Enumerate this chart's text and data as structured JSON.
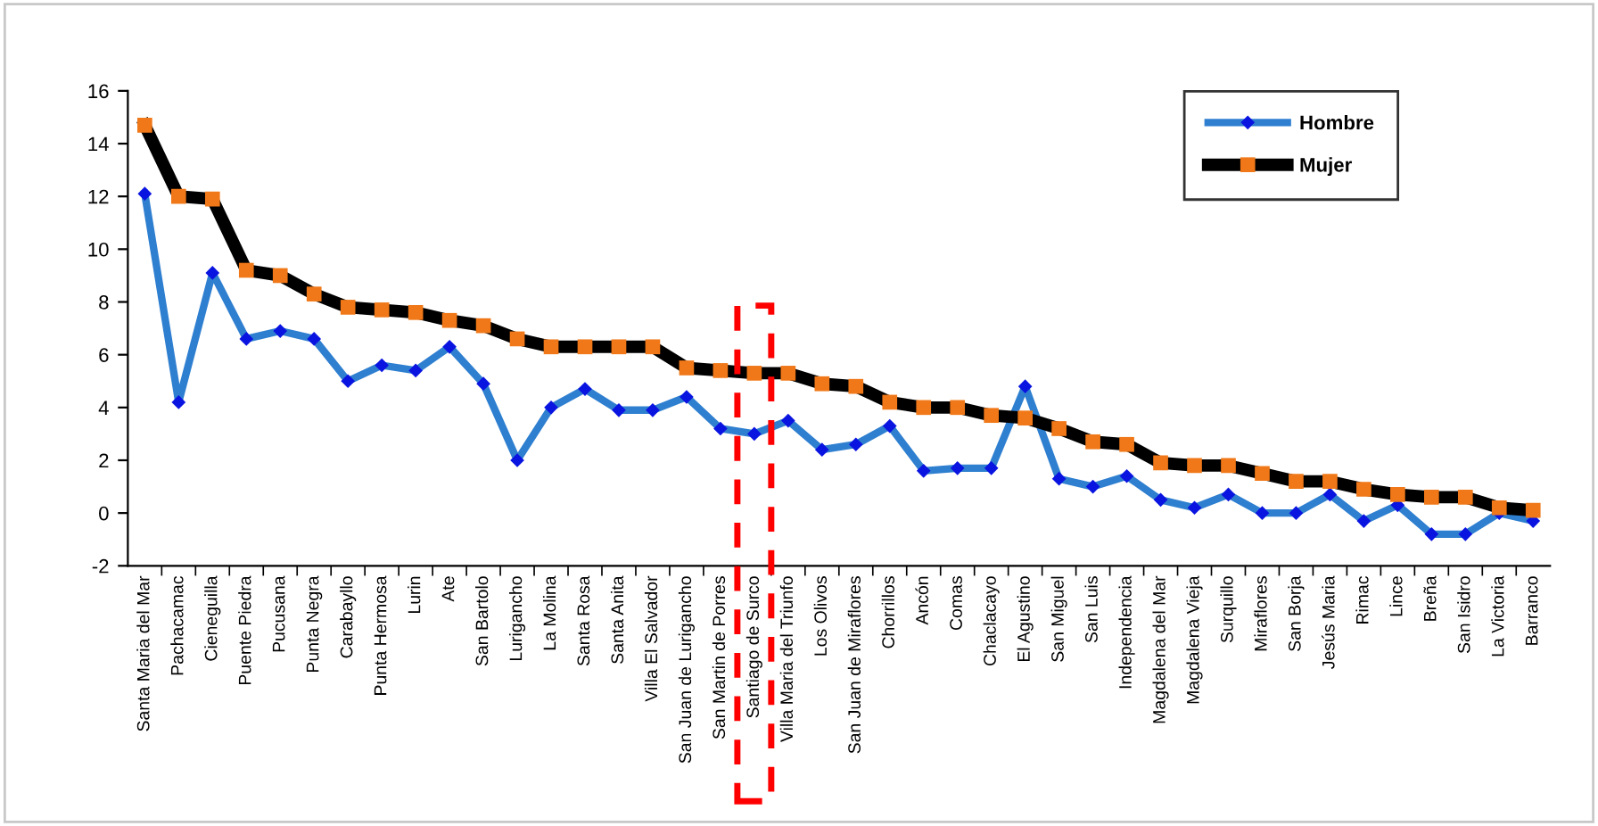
{
  "chart_data": {
    "type": "line",
    "categories": [
      "Santa Maria del Mar",
      "Pachacamac",
      "Cieneguilla",
      "Puente Piedra",
      "Pucusana",
      "Punta Negra",
      "Carabayllo",
      "Punta Hermosa",
      "Lurin",
      "Ate",
      "San Bartolo",
      "Lurigancho",
      "La Molina",
      "Santa Rosa",
      "Santa Anita",
      "Villa El Salvador",
      "San Juan de Lurigancho",
      "San Martin de Porres",
      "Santiago de Surco",
      "Villa Maria del Triunfo",
      "Los Olivos",
      "San Juan de Miraflores",
      "Chorrillos",
      "Ancón",
      "Comas",
      "Chaclacayo",
      "El Agustino",
      "San Miguel",
      "San Luis",
      "Independencia",
      "Magdalena del Mar",
      "Magdalena Vieja",
      "Surquillo",
      "Miraflores",
      "San Borja",
      "Jesús Maria",
      "Rimac",
      "Lince",
      "Breña",
      "San Isidro",
      "La Victoria",
      "Barranco"
    ],
    "series": [
      {
        "name": "Hombre",
        "color": "#2f7fd0",
        "marker": "diamond",
        "colors": [
          "#0a14e0",
          "#0a14e0",
          "#0a14e0",
          "#0a14e0",
          "#0a14e0",
          "#0a14e0",
          "#0a14e0",
          "#0a14e0",
          "#0a14e0",
          "#0a14e0",
          "#0a14e0",
          "#0a14e0",
          "#0a14e0",
          "#0a14e0",
          "#0a14e0",
          "#0a14e0",
          "#0a14e0",
          "#0a14e0",
          "#0a14e0",
          "#0a14e0",
          "#0a14e0",
          "#0a14e0",
          "#0a14e0",
          "#0a14e0",
          "#0a14e0",
          "#0a14e0",
          "#0a14e0",
          "#0a14e0",
          "#0a14e0",
          "#0a14e0",
          "#0a14e0",
          "#0a14e0",
          "#0a14e0",
          "#0a14e0",
          "#0a14e0",
          "#0a14e0",
          "#0a14e0",
          "#0a14e0",
          "#0a14e0",
          "#0a14e0",
          "#0a14e0",
          "#0a14e0"
        ],
        "values": [
          12.1,
          4.2,
          9.1,
          6.6,
          6.9,
          6.6,
          5.0,
          5.6,
          5.4,
          6.3,
          4.9,
          2.0,
          4.0,
          4.7,
          3.9,
          3.9,
          4.4,
          3.2,
          3.0,
          3.5,
          2.4,
          2.6,
          3.3,
          1.6,
          1.7,
          1.7,
          4.8,
          1.3,
          1.0,
          1.4,
          0.5,
          0.2,
          0.7,
          0.0,
          0.0,
          0.7,
          -0.3,
          0.3,
          -0.8,
          -0.8,
          0.0,
          -0.3
        ]
      },
      {
        "name": "Mujer",
        "color": "#000000",
        "marker": "square",
        "colors": [
          "#f07818",
          "#f07818",
          "#f07818",
          "#f07818",
          "#f07818",
          "#f07818",
          "#f07818",
          "#f07818",
          "#f07818",
          "#f07818",
          "#f07818",
          "#f07818",
          "#f07818",
          "#f07818",
          "#f07818",
          "#f07818",
          "#f07818",
          "#f07818",
          "#f07818",
          "#f07818",
          "#f07818",
          "#f07818",
          "#f07818",
          "#f07818",
          "#f07818",
          "#f07818",
          "#f07818",
          "#f07818",
          "#f07818",
          "#f07818",
          "#f07818",
          "#f07818",
          "#f07818",
          "#f07818",
          "#f07818",
          "#f07818",
          "#f07818",
          "#f07818",
          "#f07818",
          "#f07818",
          "#f07818",
          "#f07818"
        ],
        "values": [
          14.7,
          12.0,
          11.9,
          9.2,
          9.0,
          8.3,
          7.8,
          7.7,
          7.6,
          7.3,
          7.1,
          6.6,
          6.3,
          6.3,
          6.3,
          6.3,
          5.5,
          5.4,
          5.3,
          5.3,
          4.9,
          4.8,
          4.2,
          4.0,
          4.0,
          3.7,
          3.6,
          3.2,
          2.7,
          2.6,
          1.9,
          1.8,
          1.8,
          1.5,
          1.2,
          1.2,
          0.9,
          0.7,
          0.6,
          0.6,
          0.2,
          0.1
        ]
      }
    ],
    "ylim": [
      -2,
      16
    ],
    "yticks": [
      -2,
      0,
      2,
      4,
      6,
      8,
      10,
      12,
      14,
      16
    ],
    "grid": false,
    "legend": "top right",
    "line_style": "solid"
  }
}
